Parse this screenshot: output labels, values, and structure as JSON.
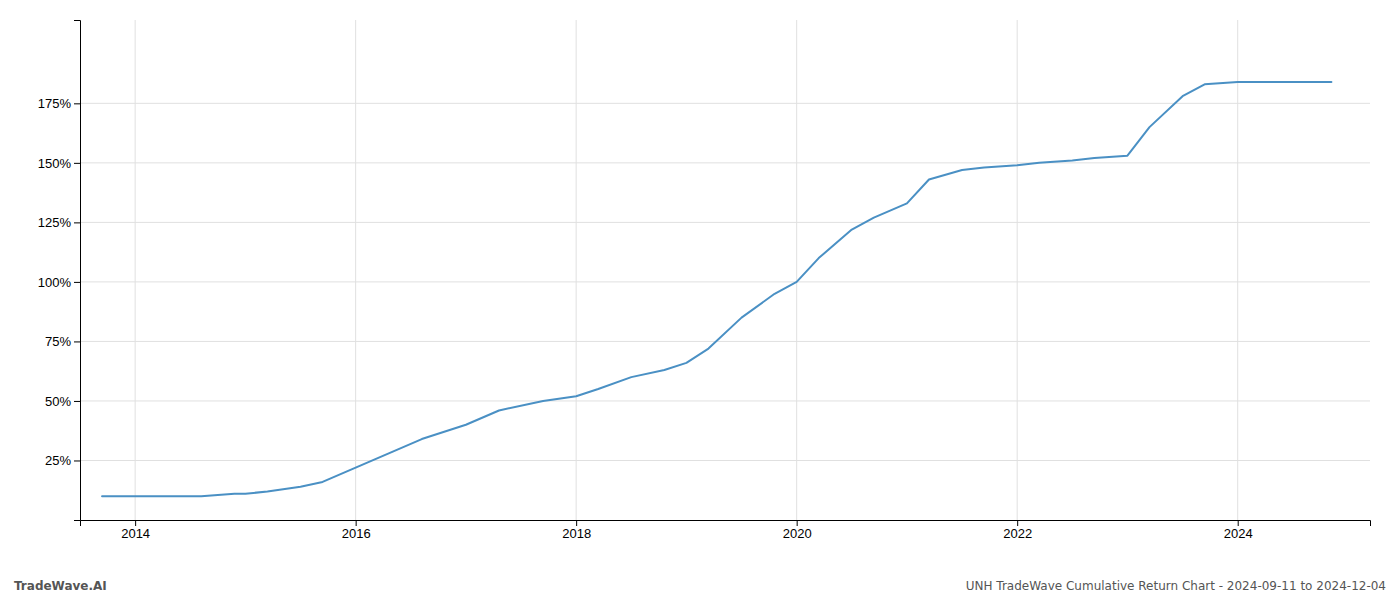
{
  "chart_data": {
    "type": "line",
    "annotations": [
      "TradeWave.AI",
      "UNH TradeWave Cumulative Return Chart - 2024-09-11 to 2024-12-04"
    ],
    "x": [
      2013.7,
      2014.0,
      2014.3,
      2014.6,
      2014.9,
      2015.0,
      2015.2,
      2015.5,
      2015.7,
      2016.0,
      2016.3,
      2016.6,
      2017.0,
      2017.3,
      2017.7,
      2018.0,
      2018.2,
      2018.5,
      2018.8,
      2019.0,
      2019.2,
      2019.5,
      2019.8,
      2020.0,
      2020.2,
      2020.5,
      2020.7,
      2021.0,
      2021.2,
      2021.5,
      2021.7,
      2022.0,
      2022.2,
      2022.5,
      2022.7,
      2023.0,
      2023.2,
      2023.5,
      2023.7,
      2024.0,
      2024.3,
      2024.6,
      2024.85
    ],
    "values": [
      10,
      10,
      10,
      10,
      11,
      11,
      12,
      14,
      16,
      22,
      28,
      34,
      40,
      46,
      50,
      52,
      55,
      60,
      63,
      66,
      72,
      85,
      95,
      100,
      110,
      122,
      127,
      133,
      143,
      147,
      148,
      149,
      150,
      151,
      152,
      153,
      165,
      178,
      183,
      184,
      184,
      184,
      184
    ],
    "color": "#4a90c4",
    "xlim": [
      2013.5,
      2025.2
    ],
    "ylim": [
      0,
      210
    ],
    "xticks": [
      2014,
      2016,
      2018,
      2020,
      2022,
      2024
    ],
    "yticks": [
      {
        "value": 25,
        "label": "25%"
      },
      {
        "value": 50,
        "label": "50%"
      },
      {
        "value": 75,
        "label": "75%"
      },
      {
        "value": 100,
        "label": "100%"
      },
      {
        "value": 125,
        "label": "125%"
      },
      {
        "value": 150,
        "label": "150%"
      },
      {
        "value": 175,
        "label": "175%"
      }
    ],
    "grid": true
  }
}
